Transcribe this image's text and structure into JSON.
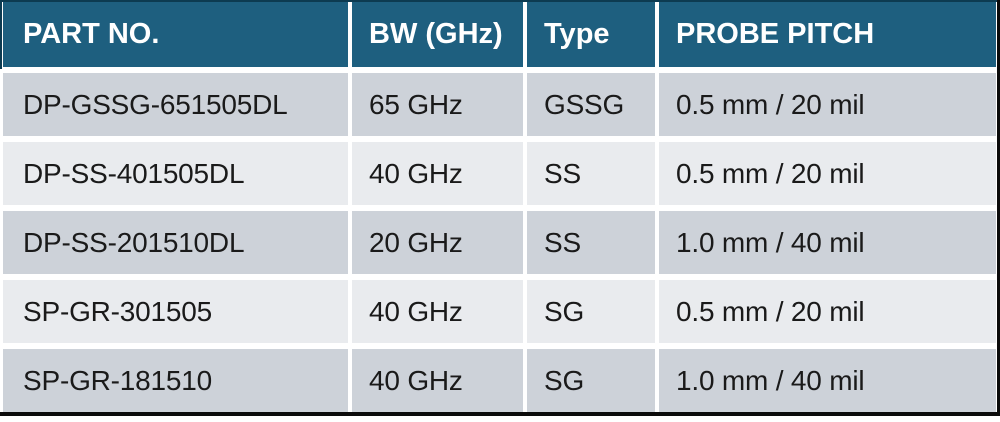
{
  "table": {
    "columns": [
      {
        "label": "PART NO."
      },
      {
        "label": "BW (GHz)"
      },
      {
        "label": "Type"
      },
      {
        "label": "PROBE PITCH"
      }
    ],
    "rows": [
      {
        "part_no": "DP-GSSG-651505DL",
        "bw": "65 GHz",
        "type": "GSSG",
        "probe_pitch": "0.5 mm / 20 mil"
      },
      {
        "part_no": "DP-SS-401505DL",
        "bw": "40 GHz",
        "type": "SS",
        "probe_pitch": "0.5 mm / 20 mil"
      },
      {
        "part_no": "DP-SS-201510DL",
        "bw": "20 GHz",
        "type": "SS",
        "probe_pitch": "1.0 mm / 40 mil"
      },
      {
        "part_no": "SP-GR-301505",
        "bw": "40 GHz",
        "type": "SG",
        "probe_pitch": "0.5 mm / 20 mil"
      },
      {
        "part_no": "SP-GR-181510",
        "bw": "40 GHz",
        "type": "SG",
        "probe_pitch": "1.0 mm / 40 mil"
      }
    ],
    "colors": {
      "header_bg": "#1e5f7f",
      "header_text": "#ffffff",
      "row_odd_bg": "#cdd2d9",
      "row_even_bg": "#e9ebee",
      "body_text": "#1a1a1a",
      "separator": "#ffffff",
      "frame_top": "#0d3b51",
      "frame_dark": "#0b0b0b"
    }
  },
  "chart_data": {
    "type": "table",
    "title": "",
    "columns": [
      "PART NO.",
      "BW (GHz)",
      "Type",
      "PROBE PITCH"
    ],
    "rows": [
      [
        "DP-GSSG-651505DL",
        "65 GHz",
        "GSSG",
        "0.5 mm / 20 mil"
      ],
      [
        "DP-SS-401505DL",
        "40 GHz",
        "SS",
        "0.5 mm / 20 mil"
      ],
      [
        "DP-SS-201510DL",
        "20 GHz",
        "SS",
        "1.0 mm / 40 mil"
      ],
      [
        "SP-GR-301505",
        "40 GHz",
        "SG",
        "0.5 mm / 20 mil"
      ],
      [
        "SP-GR-181510",
        "40 GHz",
        "SG",
        "1.0 mm / 40 mil"
      ]
    ]
  }
}
